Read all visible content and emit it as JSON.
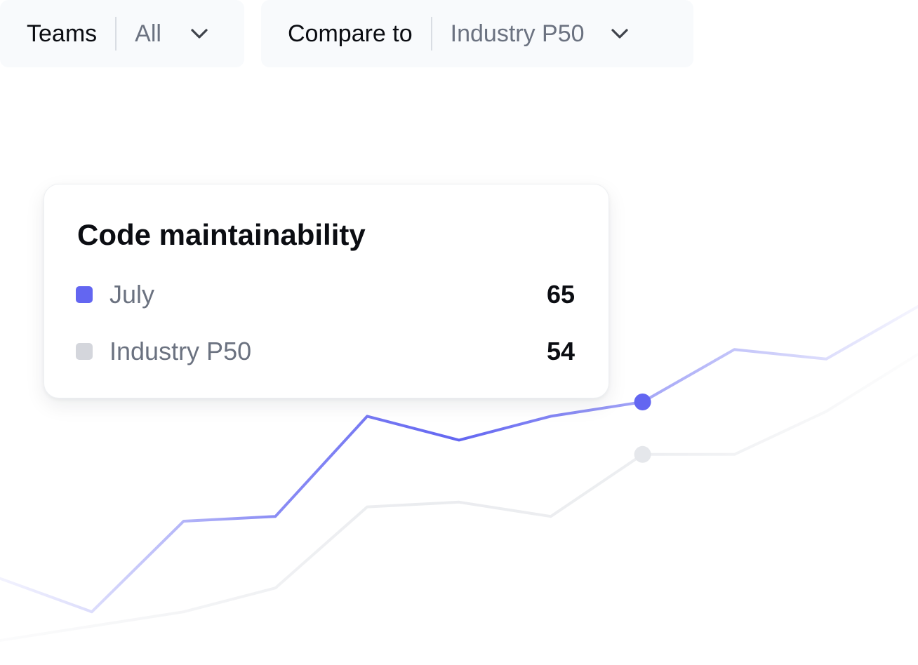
{
  "filters": {
    "teams": {
      "label": "Teams",
      "value": "All"
    },
    "compare": {
      "label": "Compare to",
      "value": "Industry P50"
    }
  },
  "tooltip": {
    "title": "Code maintainability",
    "rows": [
      {
        "name": "July",
        "value": "65",
        "color": "#6366f1"
      },
      {
        "name": "Industry P50",
        "value": "54",
        "color": "#d4d6dc"
      }
    ]
  },
  "chart_data": {
    "type": "line",
    "title": "",
    "xlabel": "",
    "ylabel": "",
    "grid": false,
    "ylim": [
      0,
      100
    ],
    "x": [
      0,
      1,
      2,
      3,
      4,
      5,
      6,
      7,
      8,
      9,
      10
    ],
    "highlight_index": 7,
    "series": [
      {
        "name": "July",
        "color": "#6366f1",
        "values": [
          28,
          21,
          40,
          41,
          62,
          57,
          62,
          65,
          76,
          74,
          85
        ]
      },
      {
        "name": "Industry P50",
        "color": "#e5e7eb",
        "values": [
          15,
          18,
          21,
          26,
          43,
          44,
          41,
          54,
          54,
          63,
          75
        ]
      }
    ]
  }
}
